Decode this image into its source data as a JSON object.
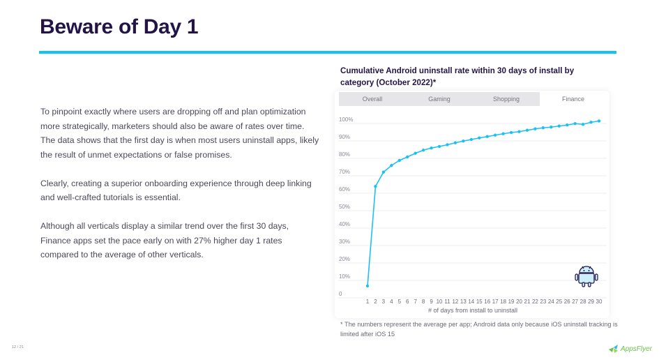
{
  "page": {
    "title": "Beware of Day 1",
    "paragraphs": [
      "To pinpoint exactly where users are dropping off and plan optimization more strategically, marketers should also be aware of rates over time. The data shows that the first day is when most users uninstall apps, likely the result of unmet expectations or false promises.",
      "Clearly, creating a superior onboarding experience through deep linking and well-crafted tutorials is essential.",
      "Although all verticals display a similar trend over the first 30 days, Finance apps set the pace early on with 27% higher day 1 rates compared to the average of other verticals."
    ],
    "footnote": "* The numbers represent the average per app; Android data only because iOS uninstall tracking is limited after iOS 15",
    "page_number": "12 / 21",
    "logo_text": "AppsFlyer",
    "accent_color": "#0fc3f5",
    "title_color": "#231446"
  },
  "tabs": [
    {
      "label": "Overall",
      "active": false
    },
    {
      "label": "Gaming",
      "active": false
    },
    {
      "label": "Shopping",
      "active": false
    },
    {
      "label": "Finance",
      "active": true
    }
  ],
  "chart_data": {
    "type": "line",
    "title": "Cumulative Android uninstall rate within 30 days of install by category (October 2022)*",
    "xlabel": "# of days from install to uninstall",
    "ylabel": "",
    "selected_category": "Finance",
    "x": [
      1,
      2,
      3,
      4,
      5,
      6,
      7,
      8,
      9,
      10,
      11,
      12,
      13,
      14,
      15,
      16,
      17,
      18,
      19,
      20,
      21,
      22,
      23,
      24,
      25,
      26,
      27,
      28,
      29,
      30
    ],
    "series": [
      {
        "name": "Finance",
        "color": "#1cc0f5",
        "values": [
          5.2,
          62.3,
          70.5,
          74.3,
          77.2,
          79.2,
          81.3,
          83.1,
          84.3,
          85.2,
          86.2,
          87.3,
          88.3,
          89.2,
          90.1,
          90.9,
          91.7,
          92.5,
          93.2,
          93.7,
          94.5,
          95.3,
          95.9,
          96.3,
          96.9,
          97.5,
          98.3,
          97.9,
          99.1,
          99.8
        ]
      }
    ],
    "yticks": [
      "0",
      "10%",
      "20%",
      "30%",
      "40%",
      "50%",
      "60%",
      "70%",
      "80%",
      "90%",
      "100%"
    ],
    "ylim": [
      0,
      100
    ],
    "grid": true,
    "legend": "none",
    "icon": "android-icon"
  }
}
